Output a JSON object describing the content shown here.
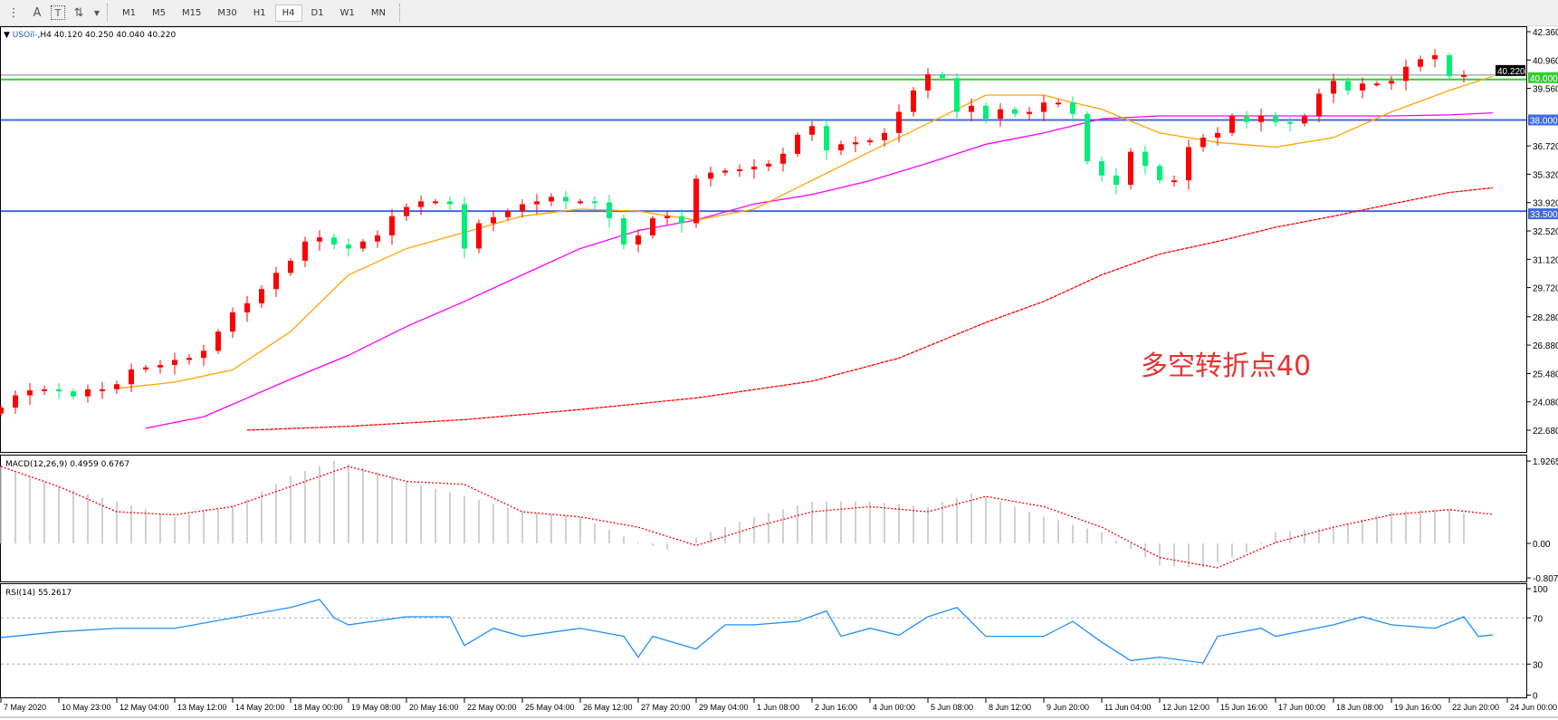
{
  "toolbar": {
    "tools": [
      {
        "icon": "fibonacci-fan-icon",
        "label": ""
      },
      {
        "icon": "text-icon",
        "label": "A"
      },
      {
        "icon": "text-label-icon",
        "label": "T"
      },
      {
        "icon": "arrows-icon",
        "label": ""
      }
    ],
    "timeframes": [
      "M1",
      "M5",
      "M15",
      "M30",
      "H1",
      "H4",
      "D1",
      "W1",
      "MN"
    ],
    "active_timeframe": "H4"
  },
  "chart": {
    "symbol": "USOil-",
    "timeframe": "H4",
    "ohlc": "40.120 40.250 40.040 40.220",
    "annotation": "多空转折点40",
    "annotation_color": "#e8322e",
    "colors": {
      "bull": "#ff0000",
      "bear": "#00ee76",
      "ma_fast": "#ffa500",
      "ma_mid": "#ff00ff",
      "ma_slow": "#ff0000",
      "support": "#4169e1",
      "pivot": "#32cd32",
      "bid": "#808080",
      "macd_hist": "#c0c0c0",
      "macd_signal": "#ff0000",
      "rsi": "#1e90ff"
    },
    "price_axis": [
      "42.360",
      "40.960",
      "39.560",
      "36.720",
      "35.320",
      "33.920",
      "32.520",
      "31.120",
      "29.720",
      "28.280",
      "26.880",
      "25.480",
      "24.080",
      "22.680"
    ],
    "price_range": [
      22.68,
      42.36
    ],
    "bid_label": "40.220",
    "hlines": [
      {
        "price": 40.0,
        "label": "40.000",
        "color": "#32cd32"
      },
      {
        "price": 38.0,
        "label": "38.000",
        "color": "#4169e1"
      },
      {
        "price": 33.5,
        "label": "33.500",
        "color": "#4169e1"
      }
    ],
    "time_axis": [
      "7 May 2020",
      "10 May 23:00",
      "12 May 04:00",
      "13 May 12:00",
      "14 May 20:00",
      "18 May 00:00",
      "19 May 08:00",
      "20 May 16:00",
      "22 May 00:00",
      "25 May 04:00",
      "26 May 12:00",
      "27 May 20:00",
      "29 May 04:00",
      "1 Jun 08:00",
      "2 Jun 16:00",
      "4 Jun 00:00",
      "5 Jun 08:00",
      "8 Jun 12:00",
      "9 Jun 20:00",
      "11 Jun 04:00",
      "12 Jun 12:00",
      "15 Jun 16:00",
      "17 Jun 00:00",
      "18 Jun 08:00",
      "19 Jun 16:00",
      "22 Jun 20:00",
      "24 Jun 00:00"
    ],
    "closes": [
      23.8,
      24.4,
      24.65,
      24.7,
      24.6,
      24.35,
      24.7,
      24.7,
      24.95,
      25.68,
      25.78,
      25.9,
      26.15,
      26.25,
      26.6,
      27.55,
      28.5,
      28.95,
      29.65,
      30.45,
      31.05,
      32.0,
      32.2,
      31.85,
      31.65,
      32.0,
      32.3,
      33.25,
      33.7,
      33.98,
      33.98,
      33.84,
      31.65,
      32.9,
      33.2,
      33.5,
      33.84,
      33.98,
      34.2,
      33.98,
      33.98,
      33.93,
      33.15,
      31.85,
      32.3,
      33.15,
      33.25,
      32.9,
      35.1,
      35.4,
      35.5,
      35.56,
      35.7,
      35.84,
      36.33,
      37.27,
      37.7,
      36.5,
      36.8,
      36.9,
      37.0,
      37.36,
      38.4,
      39.46,
      40.26,
      40.07,
      38.4,
      38.7,
      38.06,
      38.53,
      38.3,
      38.4,
      38.86,
      38.86,
      38.3,
      35.96,
      35.26,
      34.8,
      36.43,
      35.73,
      35.02,
      35.02,
      36.66,
      37.13,
      37.36,
      38.2,
      37.9,
      38.2,
      37.9,
      37.83,
      38.2,
      39.3,
      39.93,
      39.46,
      39.8,
      39.8,
      39.93,
      40.63,
      41.0,
      41.2,
      40.16,
      40.22
    ],
    "ma_fast": [
      [
        8,
        24.74
      ],
      [
        12,
        25.05
      ],
      [
        16,
        25.66
      ],
      [
        20,
        27.55
      ],
      [
        24,
        30.35
      ],
      [
        28,
        31.65
      ],
      [
        32,
        32.45
      ],
      [
        36,
        33.25
      ],
      [
        40,
        33.6
      ],
      [
        44,
        33.5
      ],
      [
        48,
        33.05
      ],
      [
        52,
        33.6
      ],
      [
        56,
        35.02
      ],
      [
        60,
        36.43
      ],
      [
        64,
        37.83
      ],
      [
        68,
        39.23
      ],
      [
        72,
        39.23
      ],
      [
        74,
        38.86
      ],
      [
        76,
        38.53
      ],
      [
        80,
        37.36
      ],
      [
        84,
        36.89
      ],
      [
        88,
        36.66
      ],
      [
        92,
        37.13
      ],
      [
        96,
        38.4
      ],
      [
        100,
        39.46
      ],
      [
        103,
        40.16
      ]
    ],
    "ma_mid": [
      [
        10,
        22.78
      ],
      [
        14,
        23.34
      ],
      [
        20,
        25.2
      ],
      [
        24,
        26.38
      ],
      [
        28,
        27.8
      ],
      [
        32,
        29.04
      ],
      [
        36,
        30.35
      ],
      [
        40,
        31.65
      ],
      [
        44,
        32.54
      ],
      [
        48,
        33.06
      ],
      [
        52,
        33.85
      ],
      [
        56,
        34.32
      ],
      [
        60,
        35.0
      ],
      [
        64,
        35.87
      ],
      [
        68,
        36.8
      ],
      [
        72,
        37.36
      ],
      [
        76,
        38.06
      ],
      [
        80,
        38.2
      ],
      [
        84,
        38.2
      ],
      [
        88,
        38.2
      ],
      [
        92,
        38.2
      ],
      [
        96,
        38.2
      ],
      [
        100,
        38.25
      ],
      [
        103,
        38.35
      ]
    ],
    "ma_slow": [
      [
        17,
        22.68
      ],
      [
        24,
        22.87
      ],
      [
        32,
        23.2
      ],
      [
        40,
        23.7
      ],
      [
        48,
        24.27
      ],
      [
        56,
        25.1
      ],
      [
        62,
        26.24
      ],
      [
        68,
        28.0
      ],
      [
        72,
        29.04
      ],
      [
        76,
        30.35
      ],
      [
        80,
        31.38
      ],
      [
        84,
        32.0
      ],
      [
        88,
        32.7
      ],
      [
        92,
        33.25
      ],
      [
        96,
        33.85
      ],
      [
        100,
        34.42
      ],
      [
        103,
        34.65
      ]
    ]
  },
  "macd": {
    "label": "MACD(12,26,9) 0.4959 0.6767",
    "axis": [
      "1.9265",
      "0.00",
      "-0.8071"
    ],
    "range": [
      -0.8071,
      1.9265
    ],
    "hist": [
      [
        0,
        1.8
      ],
      [
        4,
        1.33
      ],
      [
        8,
        0.98
      ],
      [
        12,
        0.62
      ],
      [
        16,
        0.86
      ],
      [
        20,
        1.57
      ],
      [
        23,
        1.93
      ],
      [
        24,
        1.86
      ],
      [
        28,
        1.45
      ],
      [
        32,
        1.1
      ],
      [
        36,
        0.74
      ],
      [
        40,
        0.62
      ],
      [
        44,
        0.02
      ],
      [
        46,
        -0.14
      ],
      [
        48,
        0.14
      ],
      [
        52,
        0.62
      ],
      [
        56,
        0.98
      ],
      [
        60,
        0.98
      ],
      [
        64,
        0.86
      ],
      [
        67,
        1.17
      ],
      [
        68,
        1.1
      ],
      [
        72,
        0.62
      ],
      [
        76,
        0.26
      ],
      [
        79,
        -0.33
      ],
      [
        80,
        -0.52
      ],
      [
        83,
        -0.57
      ],
      [
        86,
        -0.21
      ],
      [
        88,
        0.26
      ],
      [
        92,
        0.38
      ],
      [
        96,
        0.74
      ],
      [
        100,
        0.81
      ],
      [
        103,
        0.5
      ]
    ],
    "signal": [
      [
        0,
        1.8
      ],
      [
        4,
        1.33
      ],
      [
        8,
        0.74
      ],
      [
        12,
        0.67
      ],
      [
        16,
        0.86
      ],
      [
        20,
        1.33
      ],
      [
        24,
        1.8
      ],
      [
        28,
        1.45
      ],
      [
        32,
        1.38
      ],
      [
        36,
        0.74
      ],
      [
        40,
        0.62
      ],
      [
        44,
        0.38
      ],
      [
        48,
        -0.05
      ],
      [
        52,
        0.38
      ],
      [
        56,
        0.74
      ],
      [
        60,
        0.86
      ],
      [
        64,
        0.74
      ],
      [
        68,
        1.1
      ],
      [
        72,
        0.86
      ],
      [
        76,
        0.38
      ],
      [
        80,
        -0.33
      ],
      [
        84,
        -0.57
      ],
      [
        88,
        0.02
      ],
      [
        92,
        0.38
      ],
      [
        96,
        0.67
      ],
      [
        100,
        0.79
      ],
      [
        103,
        0.68
      ]
    ]
  },
  "rsi": {
    "label": "RSI(14) 55.2617",
    "axis": [
      "100",
      "70",
      "30",
      "0"
    ],
    "levels": [
      70,
      30
    ],
    "values": [
      [
        0,
        53
      ],
      [
        4,
        58
      ],
      [
        8,
        61
      ],
      [
        12,
        61
      ],
      [
        16,
        70
      ],
      [
        20,
        79
      ],
      [
        22,
        86
      ],
      [
        23,
        70
      ],
      [
        24,
        64
      ],
      [
        28,
        71
      ],
      [
        31,
        71
      ],
      [
        32,
        46
      ],
      [
        34,
        61
      ],
      [
        36,
        54
      ],
      [
        40,
        61
      ],
      [
        43,
        54
      ],
      [
        44,
        36
      ],
      [
        45,
        54
      ],
      [
        48,
        43
      ],
      [
        50,
        64
      ],
      [
        52,
        64
      ],
      [
        55,
        67
      ],
      [
        57,
        76
      ],
      [
        58,
        54
      ],
      [
        60,
        61
      ],
      [
        62,
        55
      ],
      [
        64,
        71
      ],
      [
        66,
        79
      ],
      [
        68,
        54
      ],
      [
        72,
        54
      ],
      [
        74,
        67
      ],
      [
        76,
        49
      ],
      [
        78,
        33
      ],
      [
        80,
        36
      ],
      [
        83,
        31
      ],
      [
        84,
        54
      ],
      [
        87,
        61
      ],
      [
        88,
        54
      ],
      [
        92,
        64
      ],
      [
        94,
        71
      ],
      [
        96,
        64
      ],
      [
        99,
        61
      ],
      [
        101,
        71
      ],
      [
        102,
        54
      ],
      [
        103,
        55.26
      ]
    ]
  }
}
